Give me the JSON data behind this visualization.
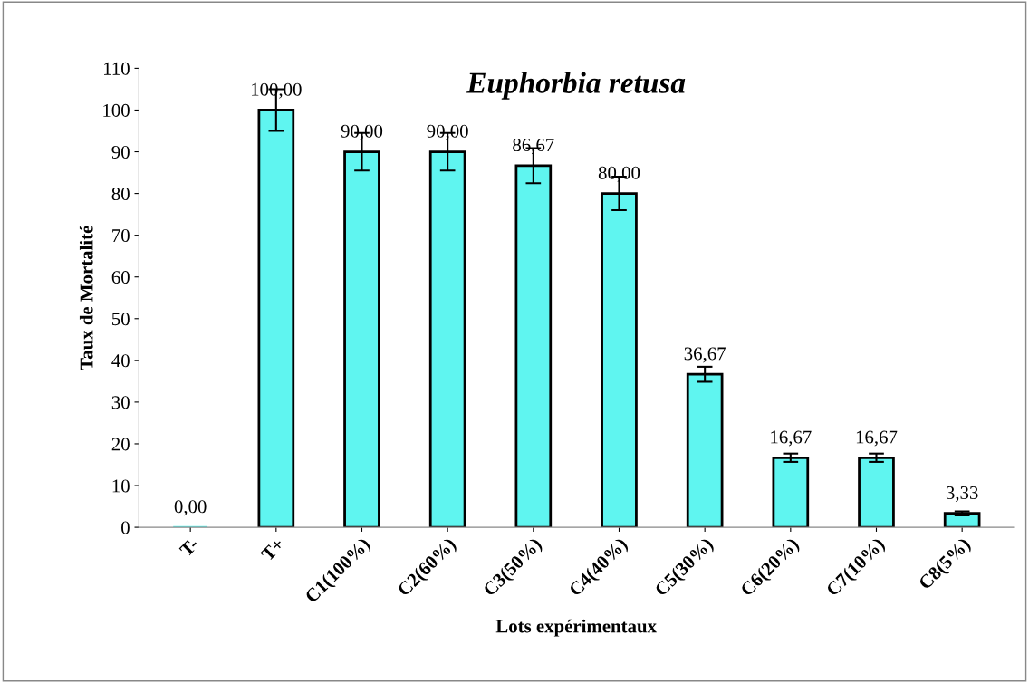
{
  "chart_data": {
    "type": "bar",
    "title": "Euphorbia retusa",
    "xlabel": "Lots expérimentaux",
    "ylabel": "Taux de Mortalité",
    "categories": [
      "T-",
      "T+",
      "C1(100%)",
      "C2(60%)",
      "C3(50%)",
      "C4(40%)",
      "C5(30%)",
      "C6(20%)",
      "C7(10%)",
      "C8(5%)"
    ],
    "values": [
      0,
      100,
      90,
      90,
      86.67,
      80,
      36.67,
      16.67,
      16.67,
      3.33
    ],
    "errors": [
      null,
      5,
      4.5,
      4.5,
      4.2,
      4,
      1.8,
      1,
      1,
      0.5
    ],
    "value_labels": [
      "0,00",
      "100,00",
      "90,00",
      "90,00",
      "86,67",
      "80,00",
      "36,67",
      "16,67",
      "16,67",
      "3,33"
    ],
    "color": "#5ff5f0",
    "ylim": [
      0,
      110
    ],
    "yticks": [
      0,
      10,
      20,
      30,
      40,
      50,
      60,
      70,
      80,
      90,
      100,
      110
    ],
    "grid": false,
    "legend": false
  }
}
